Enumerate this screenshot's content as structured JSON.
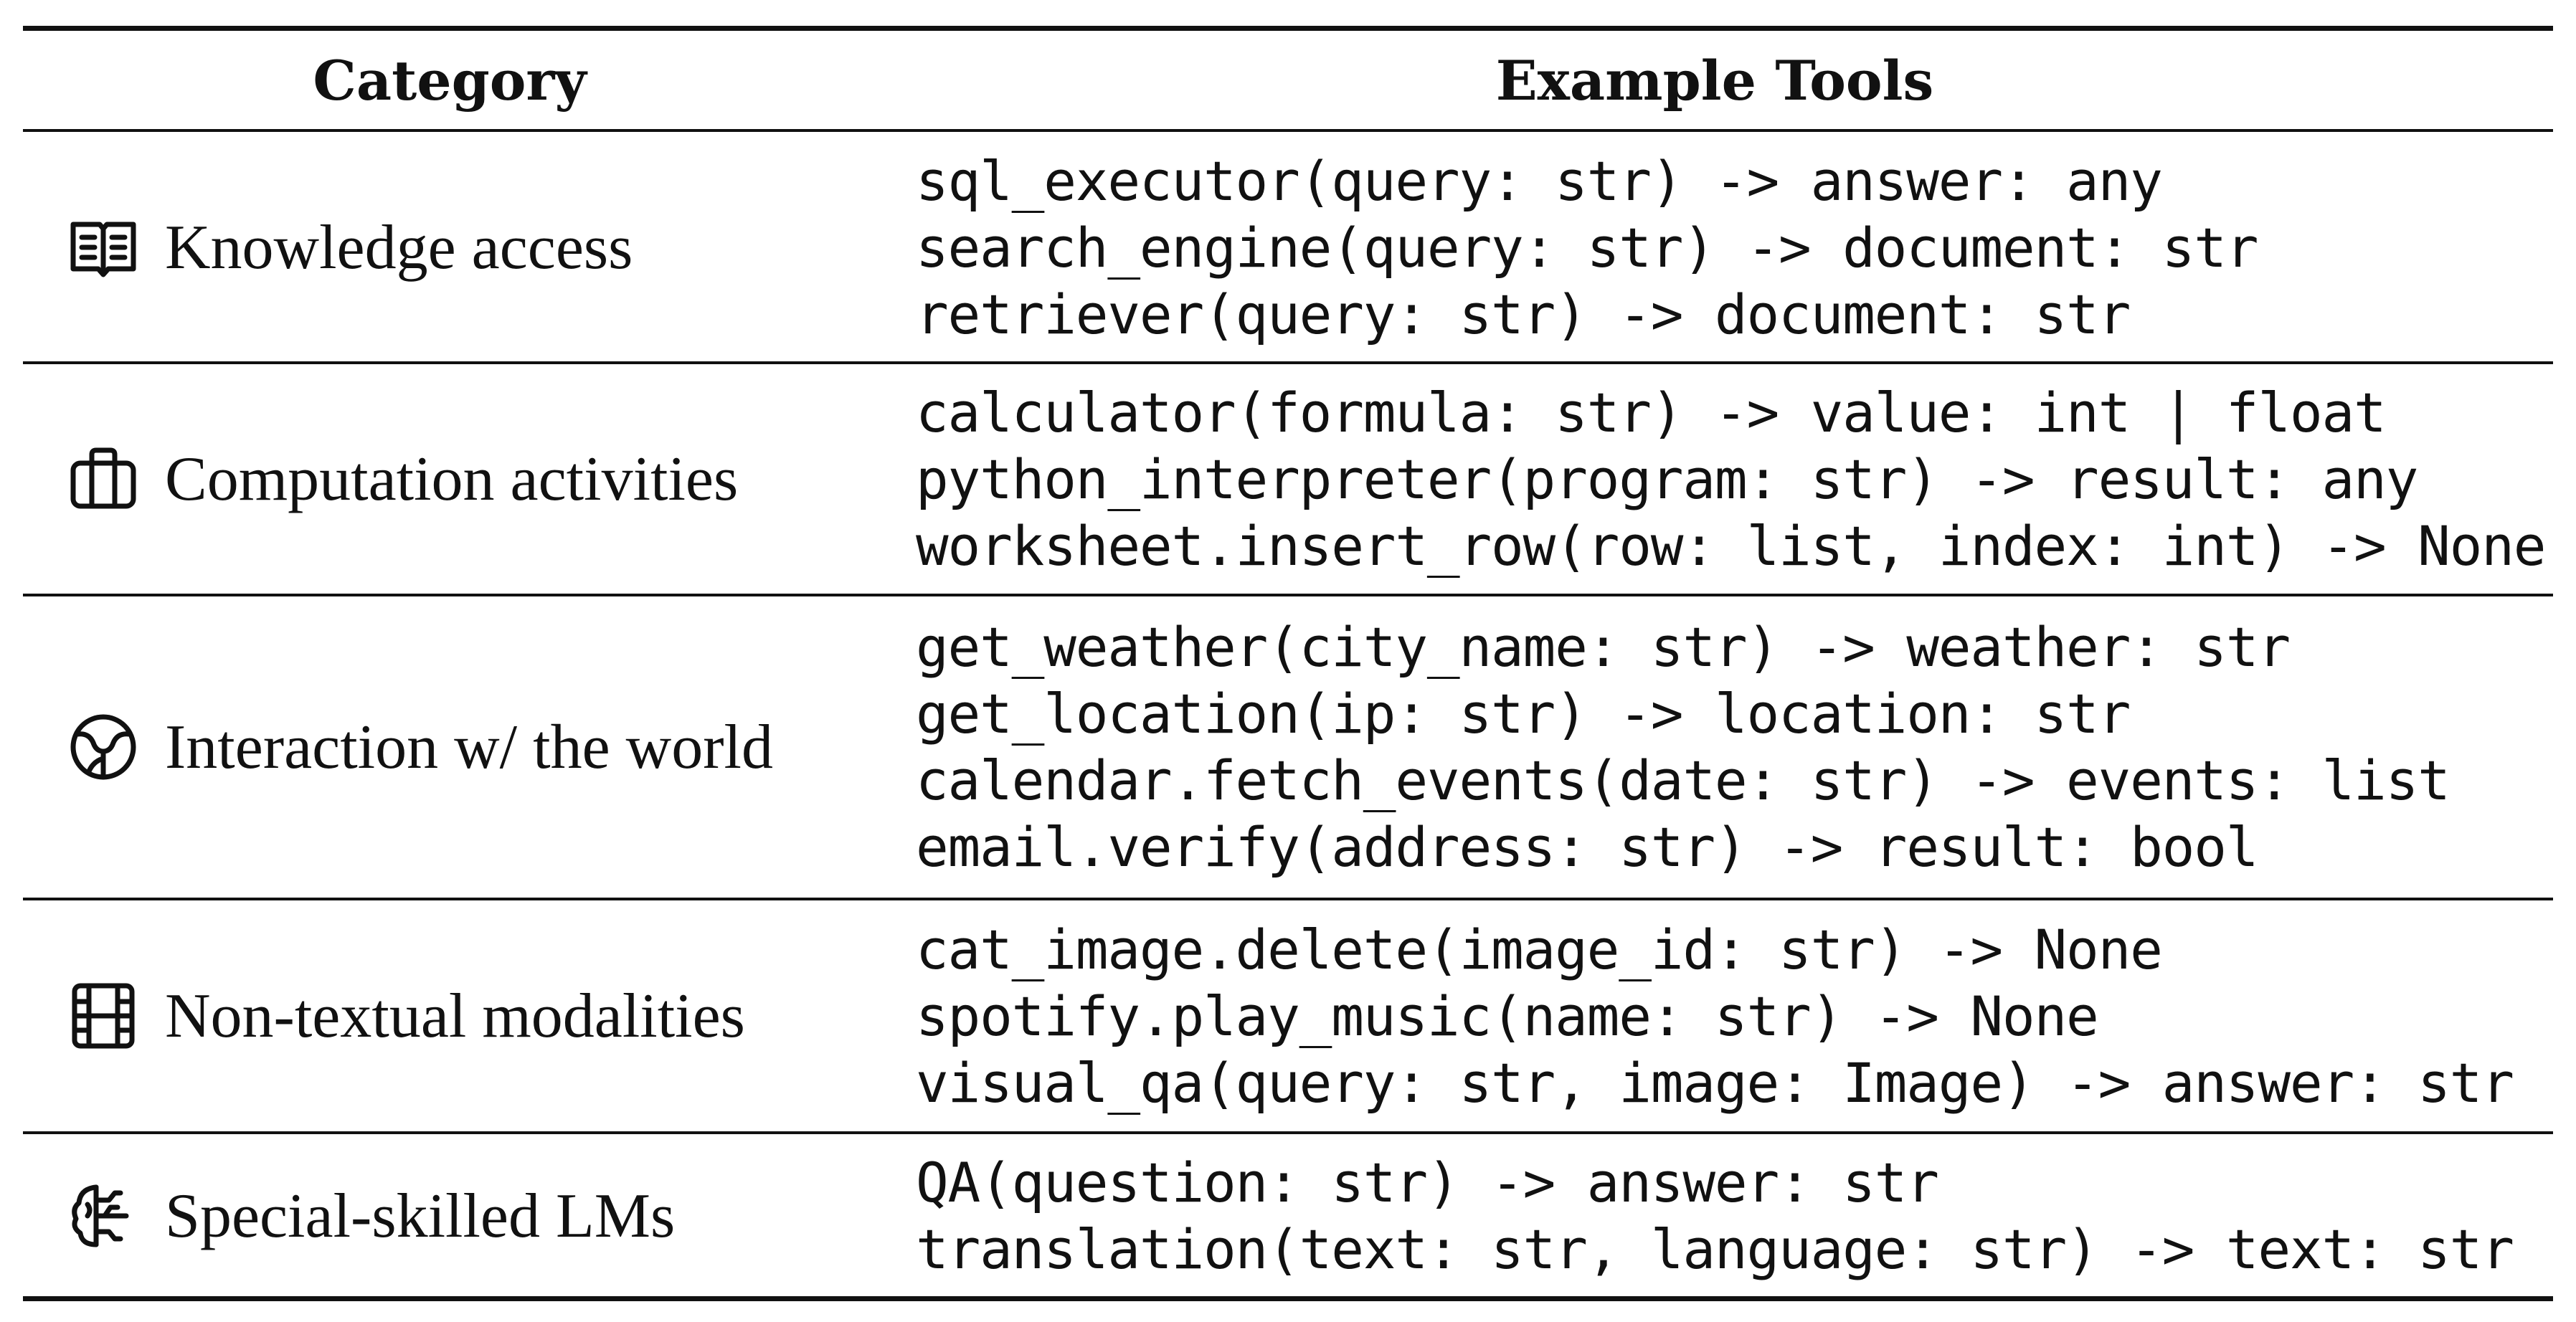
{
  "table": {
    "headers": {
      "category": "Category",
      "tools": "Example Tools"
    },
    "rows": [
      {
        "icon": "book-icon",
        "category": "Knowledge access",
        "tools": [
          "sql_executor(query: str) -> answer: any",
          "search_engine(query: str) -> document: str",
          "retriever(query: str) -> document: str"
        ]
      },
      {
        "icon": "briefcase-icon",
        "category": "Computation activities",
        "tools": [
          "calculator(formula: str) -> value: int | float",
          "python_interpreter(program: str) -> result: any",
          "worksheet.insert_row(row: list, index: int) -> None"
        ]
      },
      {
        "icon": "globe-icon",
        "category": "Interaction w/ the world",
        "tools": [
          "get_weather(city_name: str) -> weather: str",
          "get_location(ip: str) -> location: str",
          "calendar.fetch_events(date: str) -> events: list",
          "email.verify(address: str) -> result: bool"
        ]
      },
      {
        "icon": "film-icon",
        "category": "Non-textual modalities",
        "tools": [
          "cat_image.delete(image_id: str) -> None",
          "spotify.play_music(name: str) -> None",
          "visual_qa(query: str, image: Image) -> answer: str"
        ]
      },
      {
        "icon": "brain-icon",
        "category": "Special-skilled LMs",
        "tools": [
          "QA(question: str) -> answer: str",
          "translation(text: str, language: str) -> text: str"
        ]
      }
    ]
  }
}
